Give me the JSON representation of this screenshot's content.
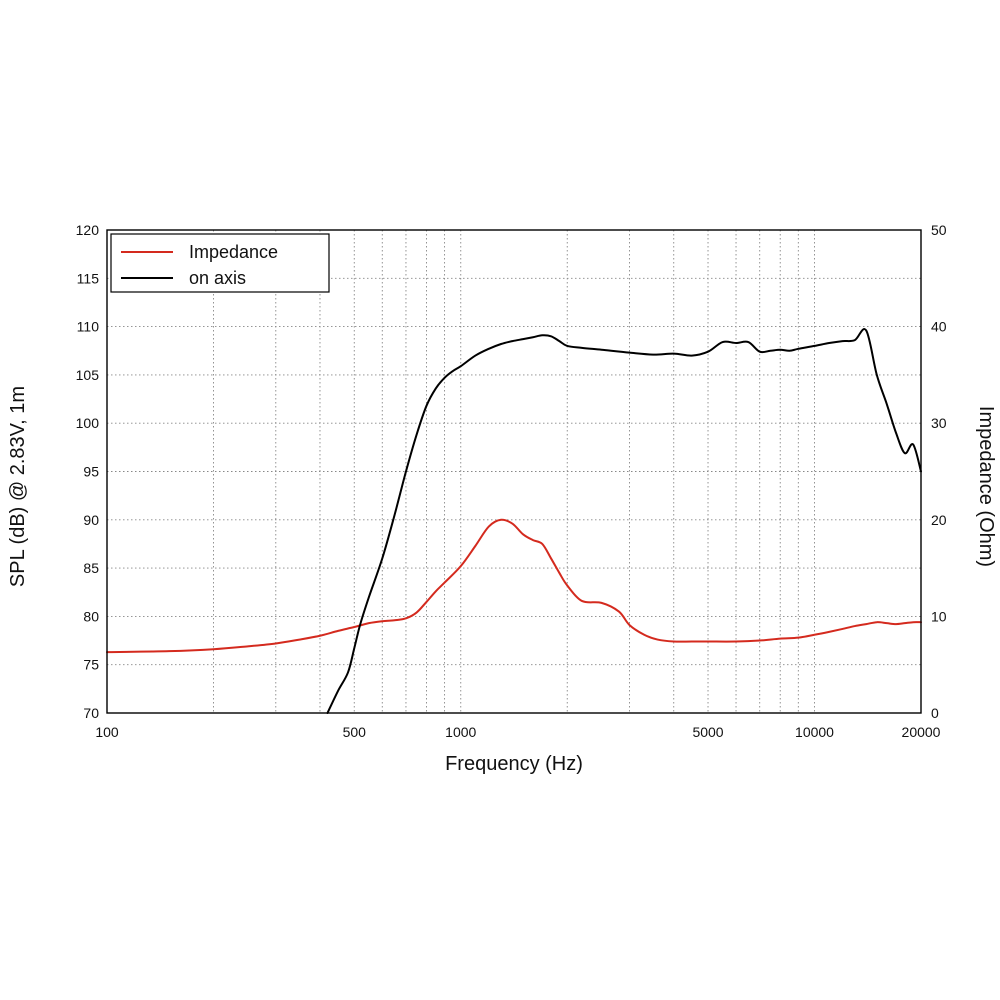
{
  "chart_data": {
    "type": "line",
    "title": "",
    "xlabel": "Frequency (Hz)",
    "ylabel_left": "SPL (dB) @ 2.83V, 1m",
    "ylabel_right": "Impedance (Ohm)",
    "x_scale": "log",
    "xlim": [
      100,
      20000
    ],
    "ylim_left": [
      70,
      120
    ],
    "ylim_right": [
      0,
      50
    ],
    "x_tick_labels": [
      "100",
      "500",
      "1000",
      "5000",
      "10000",
      "20000"
    ],
    "y_left_tick_labels": [
      "70",
      "75",
      "80",
      "85",
      "90",
      "95",
      "100",
      "105",
      "110",
      "115",
      "120"
    ],
    "y_right_tick_labels": [
      "0",
      "10",
      "20",
      "30",
      "40",
      "50"
    ],
    "grid": true,
    "legend_position": "top-left",
    "legend": [
      "Impedance",
      "on axis"
    ],
    "colors": {
      "impedance": "#d42a1e",
      "on_axis": "#000000",
      "grid": "#888888"
    },
    "series": [
      {
        "name": "Impedance",
        "axis": "right",
        "x": [
          100,
          150,
          200,
          250,
          300,
          350,
          400,
          450,
          500,
          550,
          600,
          650,
          700,
          750,
          800,
          850,
          900,
          1000,
          1100,
          1200,
          1300,
          1400,
          1500,
          1600,
          1700,
          1800,
          1900,
          2000,
          2200,
          2500,
          2800,
          3000,
          3300,
          3600,
          4000,
          4500,
          5000,
          6000,
          7000,
          8000,
          9000,
          10000,
          11000,
          12000,
          13000,
          14000,
          15000,
          16000,
          17000,
          18000,
          19000,
          20000
        ],
        "values": [
          6.3,
          6.4,
          6.6,
          6.9,
          7.2,
          7.6,
          8.0,
          8.5,
          8.9,
          9.3,
          9.5,
          9.6,
          9.8,
          10.4,
          11.5,
          12.6,
          13.5,
          15.2,
          17.3,
          19.3,
          20.0,
          19.6,
          18.5,
          17.9,
          17.5,
          16.0,
          14.5,
          13.2,
          11.6,
          11.4,
          10.5,
          9.1,
          8.1,
          7.6,
          7.4,
          7.4,
          7.4,
          7.4,
          7.5,
          7.7,
          7.8,
          8.1,
          8.4,
          8.7,
          9.0,
          9.2,
          9.4,
          9.3,
          9.2,
          9.3,
          9.4,
          9.4
        ]
      },
      {
        "name": "on axis",
        "axis": "left",
        "x": [
          420,
          450,
          480,
          500,
          520,
          550,
          600,
          650,
          700,
          750,
          800,
          850,
          900,
          950,
          1000,
          1100,
          1200,
          1300,
          1400,
          1500,
          1600,
          1700,
          1800,
          1900,
          2000,
          2200,
          2500,
          3000,
          3500,
          4000,
          4500,
          5000,
          5500,
          6000,
          6500,
          7000,
          7500,
          8000,
          8500,
          9000,
          10000,
          11000,
          12000,
          13000,
          14000,
          15000,
          16000,
          17000,
          18000,
          19000,
          20000
        ],
        "values": [
          70.0,
          72.3,
          74.2,
          76.7,
          79.2,
          82.0,
          86.0,
          90.5,
          95.0,
          98.8,
          101.8,
          103.6,
          104.7,
          105.4,
          105.9,
          107.0,
          107.7,
          108.2,
          108.5,
          108.7,
          108.9,
          109.1,
          109.0,
          108.5,
          108.0,
          107.8,
          107.6,
          107.3,
          107.1,
          107.2,
          107.0,
          107.4,
          108.4,
          108.3,
          108.4,
          107.4,
          107.5,
          107.6,
          107.5,
          107.7,
          108.0,
          108.3,
          108.5,
          108.6,
          109.6,
          105.0,
          102.0,
          99.0,
          96.9,
          97.8,
          95.0
        ]
      }
    ]
  }
}
